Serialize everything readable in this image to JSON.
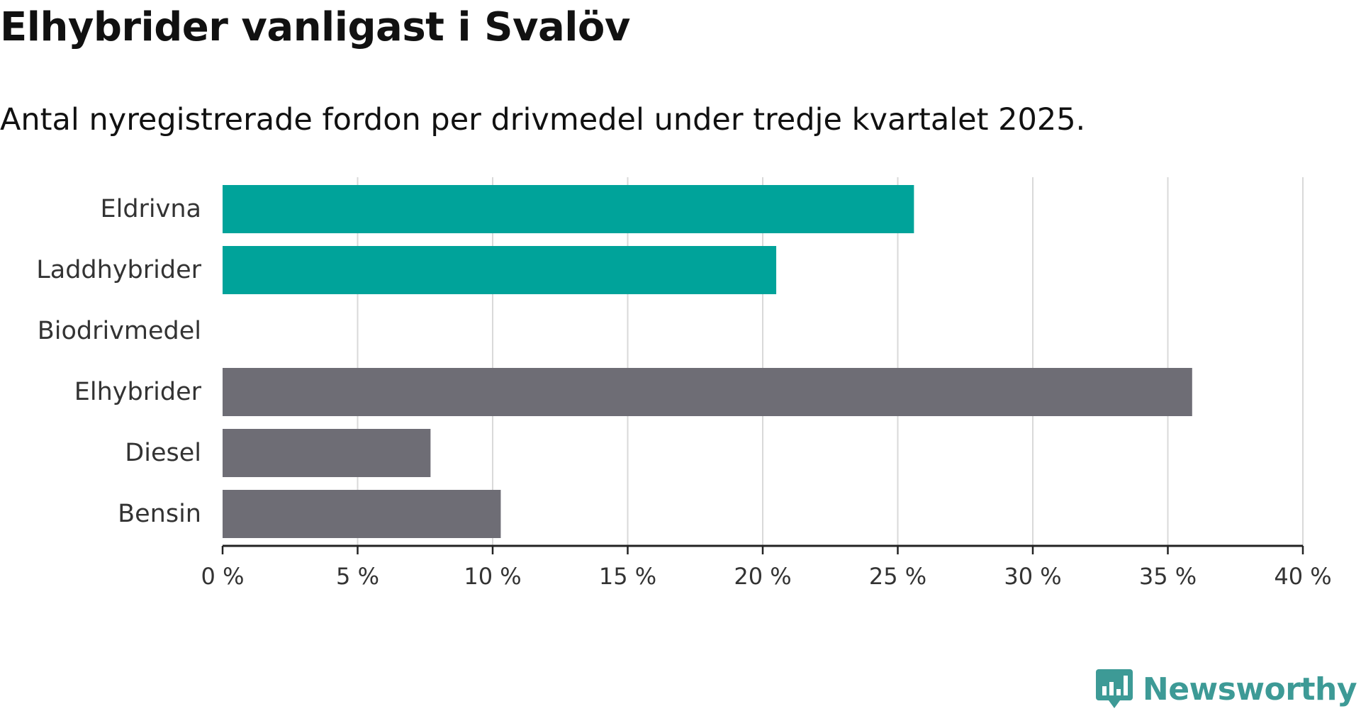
{
  "header": {
    "title": "Elhybrider vanligast i Svalöv",
    "subtitle": "Antal nyregistrerade fordon per drivmedel under tredje kvartalet 2025."
  },
  "chart_data": {
    "type": "bar",
    "orientation": "horizontal",
    "title": "Elhybrider vanligast i Svalöv",
    "subtitle": "Antal nyregistrerade fordon per drivmedel under tredje kvartalet 2025.",
    "xlabel": "",
    "ylabel": "",
    "unit": "%",
    "categories": [
      "Eldrivna",
      "Laddhybrider",
      "Biodrivmedel",
      "Elhybrider",
      "Diesel",
      "Bensin"
    ],
    "values": [
      25.6,
      20.5,
      0,
      35.9,
      7.7,
      10.3
    ],
    "bar_colors": [
      "#00a39a",
      "#00a39a",
      "#00a39a",
      "#6e6d75",
      "#6e6d75",
      "#6e6d75"
    ],
    "xlim": [
      0,
      40
    ],
    "xticks": [
      0,
      5,
      10,
      15,
      20,
      25,
      30,
      35,
      40
    ],
    "xtick_labels": [
      "0 %",
      "5 %",
      "10 %",
      "15 %",
      "20 %",
      "25 %",
      "30 %",
      "35 %",
      "40 %"
    ],
    "grid": true
  },
  "brand": {
    "name": "Newsworthy",
    "icon": "newsworthy-logo-icon",
    "color": "#3d9a96"
  },
  "colors": {
    "grid": "#d9d9d9",
    "axis": "#222222"
  }
}
